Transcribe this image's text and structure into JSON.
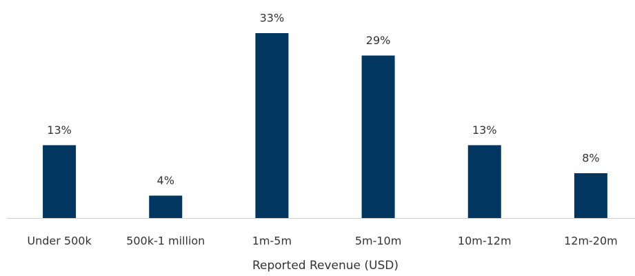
{
  "chart_data": {
    "type": "bar",
    "x_label": "Reported Revenue (USD)",
    "categories": [
      "Under 500k",
      "500k-1 million",
      "1m-5m",
      "5m-10m",
      "10m-12m",
      "12m-20m"
    ],
    "values": [
      13,
      4,
      33,
      29,
      13,
      8
    ],
    "value_labels": [
      "13%",
      "4%",
      "33%",
      "29%",
      "13%",
      "8%"
    ],
    "color": "#00365f"
  }
}
